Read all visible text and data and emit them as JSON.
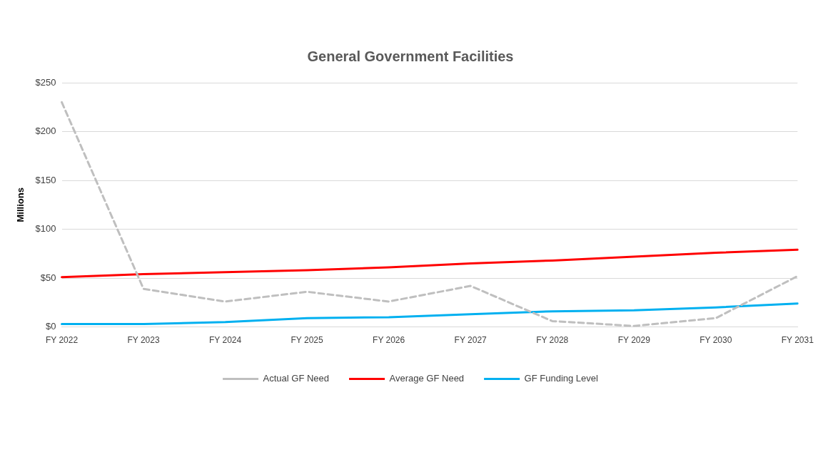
{
  "chart_data": {
    "type": "line",
    "title": "General Government Facilities",
    "ylabel": "Millions",
    "categories": [
      "FY 2022",
      "FY 2023",
      "FY 2024",
      "FY 2025",
      "FY 2026",
      "FY 2027",
      "FY 2028",
      "FY 2029",
      "FY 2030",
      "FY 2031"
    ],
    "series": [
      {
        "name": "Actual GF Need",
        "color": "#bfbfbf",
        "line_style": "dashed",
        "values": [
          230,
          39,
          26,
          36,
          26,
          42,
          6,
          1,
          9,
          52
        ]
      },
      {
        "name": "Average GF Need",
        "color": "#ff0000",
        "line_style": "solid",
        "values": [
          51,
          54,
          56,
          58,
          61,
          65,
          68,
          72,
          76,
          79
        ]
      },
      {
        "name": "GF Funding Level",
        "color": "#00b0f0",
        "line_style": "solid",
        "values": [
          3,
          3,
          5,
          9,
          10,
          13,
          16,
          17,
          20,
          24
        ]
      }
    ],
    "ylim": [
      0,
      250
    ],
    "yticks": [
      {
        "value": 0,
        "label": "$0"
      },
      {
        "value": 50,
        "label": "$50"
      },
      {
        "value": 100,
        "label": "$100"
      },
      {
        "value": 150,
        "label": "$150"
      },
      {
        "value": 200,
        "label": "$200"
      },
      {
        "value": 250,
        "label": "$250"
      }
    ],
    "grid": "y",
    "legend": "bottom",
    "marker": "none"
  }
}
